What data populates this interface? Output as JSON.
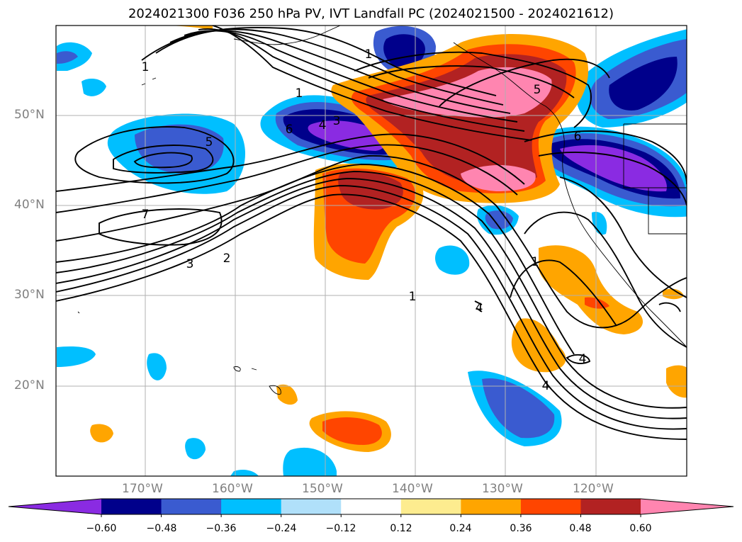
{
  "title": "2024021300 F036 250 hPa PV, IVT Landfall PC (2024021500 - 2024021612)",
  "lat_labels": [
    "50°N",
    "40°N",
    "30°N",
    "20°N"
  ],
  "lon_labels": [
    "170°W",
    "160°W",
    "150°W",
    "140°W",
    "130°W",
    "120°W"
  ],
  "contour_labels": [
    "1",
    "1",
    "3",
    "4",
    "6",
    "5",
    "7",
    "3",
    "2",
    "1",
    "1",
    "1",
    "5",
    "6",
    "4",
    "4",
    "4"
  ],
  "colorbar": {
    "colors": [
      "#8a2be2",
      "#00008b",
      "#3a5bd0",
      "#00bfff",
      "#b0e0fa",
      "#ffffff",
      "#fdec8f",
      "#ffa500",
      "#ff4500",
      "#b22222",
      "#ff85b0"
    ],
    "ticks": [
      "−0.60",
      "−0.48",
      "−0.36",
      "−0.24",
      "−0.12",
      "0.12",
      "0.24",
      "0.36",
      "0.48",
      "0.60"
    ]
  }
}
